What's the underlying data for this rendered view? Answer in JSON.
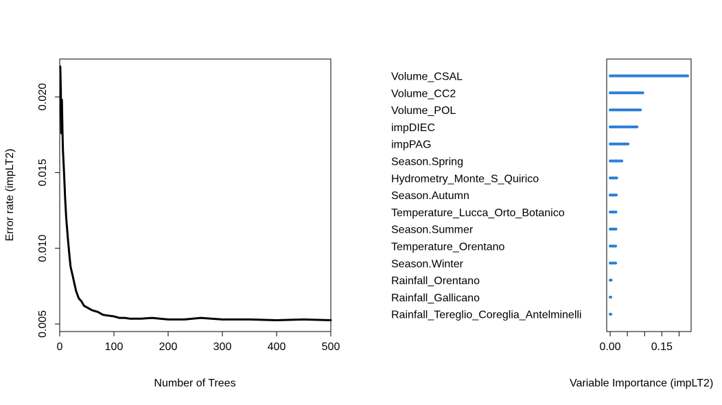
{
  "chart_data": [
    {
      "type": "line",
      "title": "",
      "xlabel": "Number of Trees",
      "ylabel": "Error rate (impLT2)",
      "xlim": [
        0,
        500
      ],
      "ylim": [
        0.0045,
        0.0225
      ],
      "x_ticks": [
        {
          "value": 0,
          "label": "0"
        },
        {
          "value": 100,
          "label": "100"
        },
        {
          "value": 200,
          "label": "200"
        },
        {
          "value": 300,
          "label": "300"
        },
        {
          "value": 400,
          "label": "400"
        },
        {
          "value": 500,
          "label": "500"
        }
      ],
      "y_ticks": [
        {
          "value": 0.005,
          "label": "0.005"
        },
        {
          "value": 0.01,
          "label": "0.010"
        },
        {
          "value": 0.015,
          "label": "0.015"
        },
        {
          "value": 0.02,
          "label": "0.020"
        }
      ],
      "line_color": "#000000",
      "series": [
        {
          "x": [
            1,
            2,
            3,
            4,
            5,
            6,
            8,
            10,
            12,
            15,
            18,
            20,
            25,
            30,
            35,
            40,
            45,
            50,
            60,
            70,
            80,
            90,
            100,
            110,
            120,
            130,
            150,
            170,
            200,
            230,
            260,
            300,
            350,
            400,
            450,
            500
          ],
          "values": [
            0.022,
            0.0205,
            0.0176,
            0.0198,
            0.0178,
            0.0165,
            0.015,
            0.0133,
            0.012,
            0.0107,
            0.0095,
            0.0088,
            0.008,
            0.0072,
            0.0067,
            0.0065,
            0.0062,
            0.0061,
            0.0059,
            0.0058,
            0.0056,
            0.00555,
            0.0055,
            0.0054,
            0.0054,
            0.00535,
            0.00535,
            0.0054,
            0.0053,
            0.0053,
            0.0054,
            0.0053,
            0.0053,
            0.00525,
            0.0053,
            0.00525
          ]
        }
      ]
    },
    {
      "type": "bar",
      "orientation": "horizontal",
      "title": "",
      "xlabel": "Variable Importance (impLT2)",
      "ylabel": "",
      "xlim": [
        -0.01,
        0.235
      ],
      "x_ticks": [
        {
          "value": 0.0,
          "label": "0.00"
        },
        {
          "value": 0.05,
          "label": ""
        },
        {
          "value": 0.1,
          "label": ""
        },
        {
          "value": 0.15,
          "label": "0.15"
        },
        {
          "value": 0.2,
          "label": ""
        }
      ],
      "bar_color": "#2a7fd8",
      "categories": [
        "Volume_CSAL",
        "Volume_CC2",
        "Volume_POL",
        "impDIEC",
        "impPAG",
        "Season.Spring",
        "Hydrometry_Monte_S_Quirico",
        "Season.Autumn",
        "Temperature_Lucca_Orto_Botanico",
        "Season.Summer",
        "Temperature_Orentano",
        "Season.Winter",
        "Rainfall_Orentano",
        "Rainfall_Gallicano",
        "Rainfall_Tereglio_Coreglia_Antelminelli"
      ],
      "values": [
        0.225,
        0.095,
        0.088,
        0.078,
        0.052,
        0.034,
        0.019,
        0.018,
        0.017,
        0.017,
        0.016,
        0.016,
        0.003,
        0.002,
        0.002
      ]
    }
  ]
}
